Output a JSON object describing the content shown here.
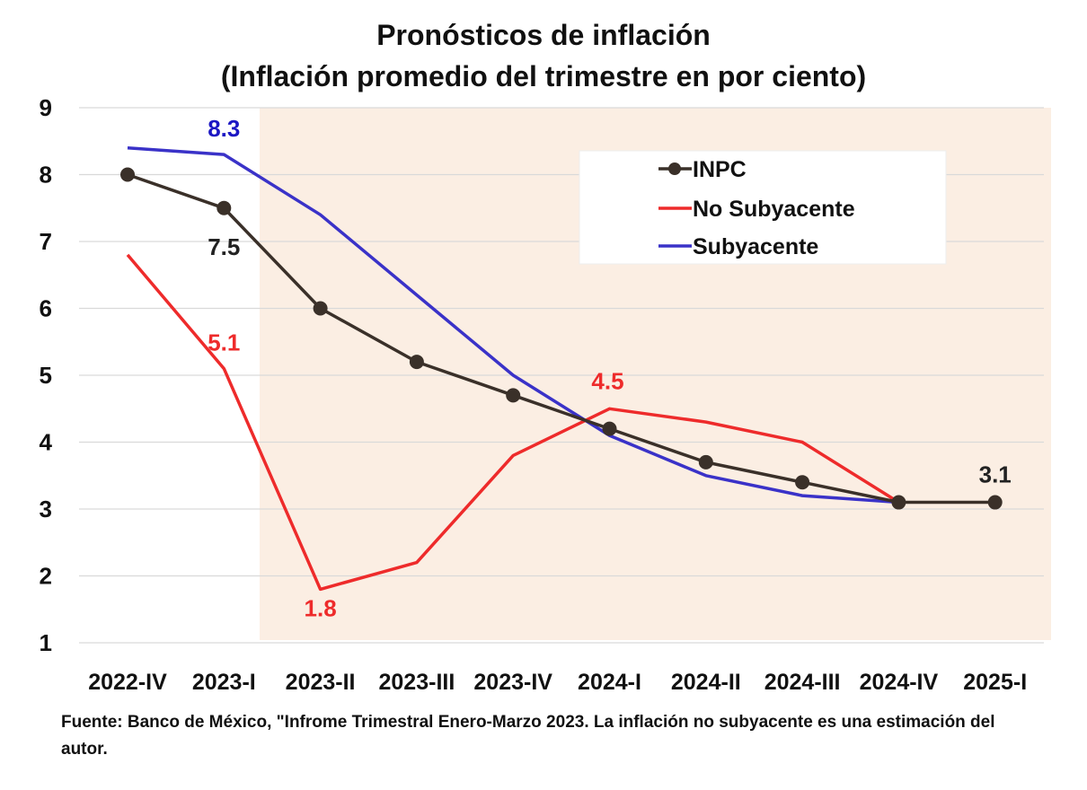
{
  "chart_data": {
    "type": "line",
    "title": "Pronósticos de inflación",
    "subtitle": "(Inflación promedio del trimestre en por ciento)",
    "categories": [
      "2022-IV",
      "2023-I",
      "2023-II",
      "2023-III",
      "2023-IV",
      "2024-I",
      "2024-II",
      "2024-III",
      "2024-IV",
      "2025-I"
    ],
    "ylim": [
      1,
      9
    ],
    "yticks": [
      "1",
      "2",
      "3",
      "4",
      "5",
      "6",
      "7",
      "8",
      "9"
    ],
    "grid": true,
    "legend_position": "top-right",
    "forecast_shading_start": "2023-II",
    "series": [
      {
        "name": "INPC",
        "color": "#3a3029",
        "markers": true,
        "values": [
          8.0,
          7.5,
          6.0,
          5.2,
          4.7,
          4.2,
          3.7,
          3.4,
          3.1,
          3.1
        ],
        "labels": [
          {
            "index": 1,
            "text": "7.5"
          },
          {
            "index": 9,
            "text": "3.1"
          }
        ]
      },
      {
        "name": "No Subyacente",
        "color": "#ee2b2b",
        "markers": false,
        "values": [
          6.8,
          5.1,
          1.8,
          2.2,
          3.8,
          4.5,
          4.3,
          4.0,
          3.1,
          null
        ],
        "labels": [
          {
            "index": 1,
            "text": "5.1"
          },
          {
            "index": 2,
            "text": "1.8"
          },
          {
            "index": 5,
            "text": "4.5"
          }
        ]
      },
      {
        "name": "Subyacente",
        "color": "#3a32c8",
        "markers": false,
        "values": [
          8.4,
          8.3,
          7.4,
          6.2,
          5.0,
          4.1,
          3.5,
          3.2,
          3.1,
          null
        ],
        "labels": [
          {
            "index": 1,
            "text": "8.3"
          }
        ]
      }
    ],
    "colors": {
      "shading": "#fbeee3",
      "grid": "#d9d9d9",
      "text": "#111111",
      "label_inpc": "#222222",
      "label_no_subyacente": "#ee2b2b",
      "label_subyacente": "#1c17c4"
    }
  },
  "source_note": "Fuente: Banco de México, \"Infrome Trimestral Enero-Marzo 2023. La inflación no subyacente es una estimación del autor."
}
